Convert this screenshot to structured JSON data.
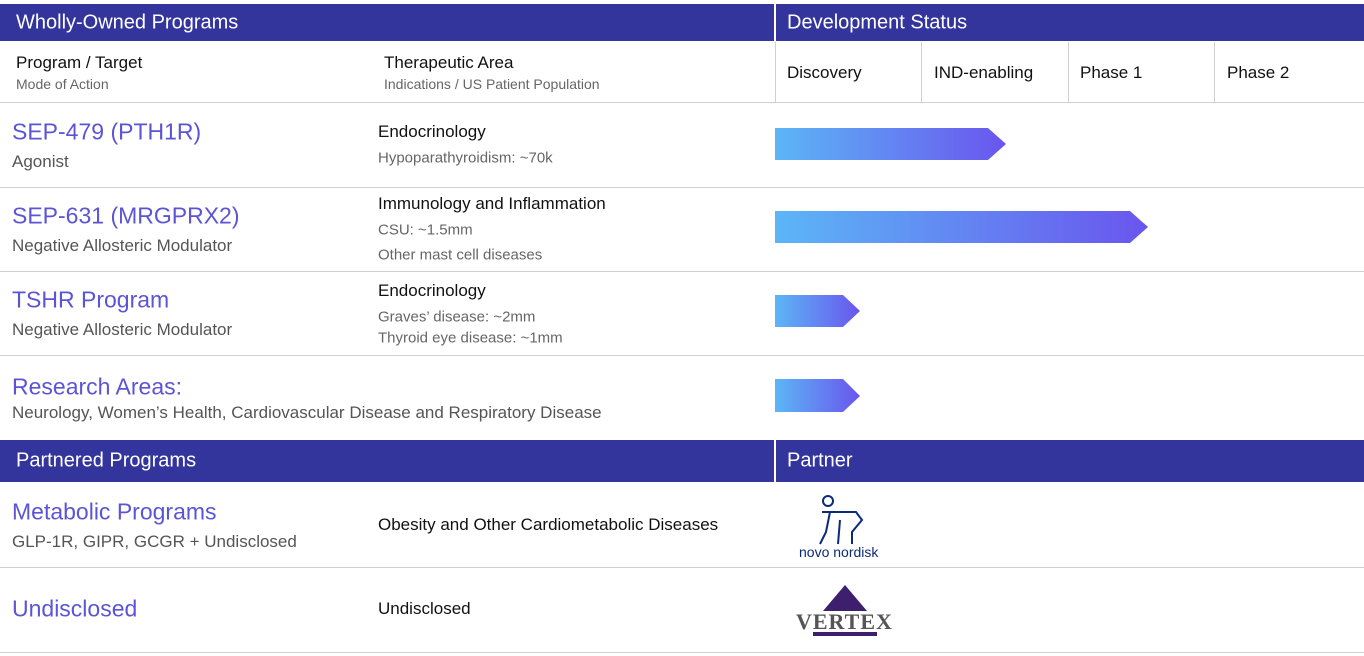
{
  "wholly_owned": {
    "title": "Wholly-Owned Programs",
    "status_title": "Development Status",
    "columns": {
      "program": "Program / Target",
      "program_sub": "Mode of Action",
      "area": "Therapeutic Area",
      "area_sub": "Indications / US Patient Population",
      "phases": [
        "Discovery",
        "IND-enabling",
        "Phase 1",
        "Phase 2"
      ]
    },
    "rows": [
      {
        "name": "SEP-479 (PTH1R)",
        "mode": "Agonist",
        "area": "Endocrinology",
        "details": [
          "Hypoparathyroidism: ~70k"
        ]
      },
      {
        "name": "SEP-631 (MRGPRX2)",
        "mode": "Negative Allosteric Modulator",
        "area": "Immunology and Inflammation",
        "details": [
          "CSU: ~1.5mm",
          "Other mast cell diseases"
        ]
      },
      {
        "name": "TSHR Program",
        "mode": "Negative Allosteric Modulator",
        "area": "Endocrinology",
        "details": [
          "Graves’ disease: ~2mm",
          "Thyroid eye disease: ~1mm"
        ]
      }
    ],
    "research": {
      "name": "Research Areas:",
      "details": "Neurology, Women’s Health, Cardiovascular Disease and Respiratory Disease"
    }
  },
  "partnered": {
    "title": "Partnered Programs",
    "partner_title": "Partner",
    "rows": [
      {
        "name": "Metabolic Programs",
        "mode": "GLP-1R, GIPR, GCGR + Undisclosed",
        "area": "Obesity and Other Cardiometabolic Diseases",
        "partner": "novo nordisk"
      },
      {
        "name": "Undisclosed",
        "area": "Undisclosed",
        "partner": "VERTEX"
      }
    ]
  }
}
